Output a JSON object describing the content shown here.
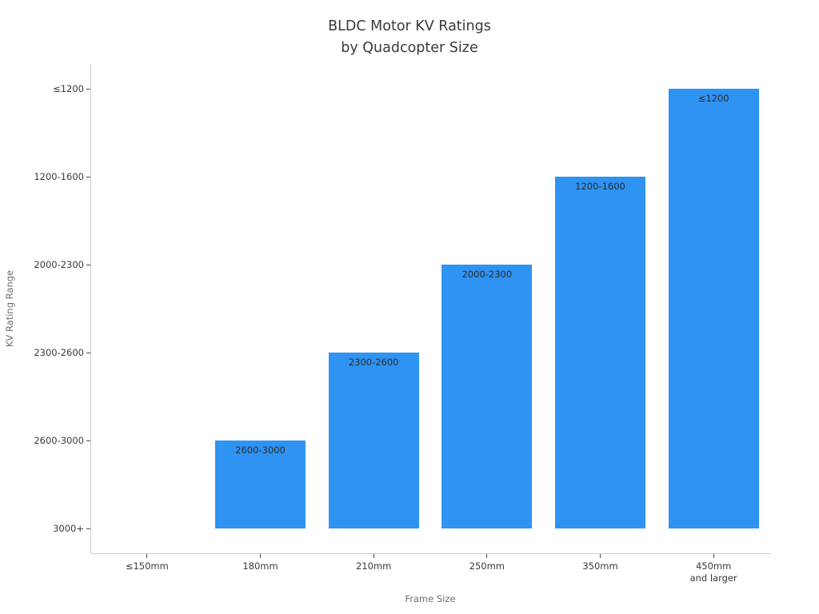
{
  "title": {
    "line1": "BLDC Motor KV Ratings",
    "line2": "by Quadcopter Size"
  },
  "chart_data": {
    "type": "bar",
    "title": "BLDC Motor KV Ratings by Quadcopter Size",
    "xlabel": "Frame Size",
    "ylabel": "KV Rating Range",
    "orientation": "vertical",
    "grid": false,
    "legend": false,
    "categories": [
      "≤150mm",
      "180mm",
      "210mm",
      "250mm",
      "350mm",
      "450mm\nand larger"
    ],
    "values": [
      "3000+",
      "2600-3000",
      "2300-2600",
      "2000-2300",
      "1200-1600",
      "≤1200"
    ],
    "ordinal_ranks": [
      0,
      1,
      2,
      3,
      4,
      5
    ],
    "bar_labels": [
      "",
      "2600-3000",
      "2300-2600",
      "2000-2300",
      "1200-1600",
      "≤1200"
    ],
    "y_labels_bottom_to_top": [
      "3000+",
      "2600-3000",
      "2300-2600",
      "2000-2300",
      "1200-1600",
      "≤1200"
    ],
    "bar_color": "#2E93F3",
    "y_axis_note": "ordinal scale, one unit per KV range, zero-height bar for ≤150mm"
  }
}
